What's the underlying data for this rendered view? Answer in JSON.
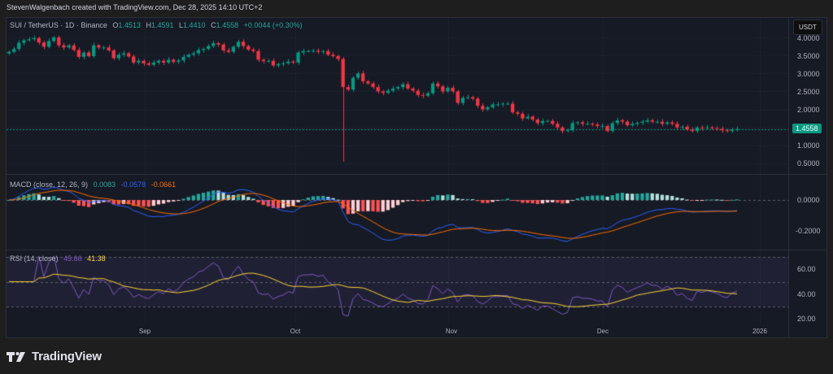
{
  "header": {
    "credit": "StevenWalgenbach created with TradingView.com, Dec 28, 2025 14:10 UTC+2"
  },
  "symbol": {
    "title": "SUI / TetherUS · 1D · Binance",
    "open_label": "O",
    "open": "1.4513",
    "high_label": "H",
    "high": "1.4591",
    "low_label": "L",
    "low": "1.4410",
    "close_label": "C",
    "close": "1.4558",
    "change": "+0.0044 (+0.30%)"
  },
  "price_scale": {
    "currency": "USDT",
    "labels": [
      "4.0000",
      "3.5000",
      "3.0000",
      "2.5000",
      "2.0000",
      "1.0000",
      "0.5000"
    ],
    "last_price": "1.4558"
  },
  "macd": {
    "title": "MACD (close, 12, 26, 9)",
    "histogram": "0.0083",
    "macd": "-0.0578",
    "signal": "-0.0661",
    "labels": [
      "0.0000",
      "-0.2000"
    ]
  },
  "rsi": {
    "title": "RSI (14, close)",
    "rsi": "45.66",
    "ma": "41.38",
    "labels": [
      "60.00",
      "40.00",
      "20.00"
    ]
  },
  "time_axis": {
    "labels": [
      "Sep",
      "Oct",
      "Nov",
      "Dec",
      "2026"
    ]
  },
  "footer": {
    "brand": "TradingView"
  },
  "colors": {
    "up": "#089981",
    "down": "#f23645",
    "macd_line": "#2962ff",
    "signal_line": "#ff6d00",
    "rsi_line": "#7e57c2",
    "rsi_ma": "#fdd835",
    "hist_up_strong": "#26a69a",
    "hist_up_weak": "#b2dfdb",
    "hist_down_strong": "#ff5252",
    "hist_down_weak": "#ffcdd2"
  },
  "chart_data": [
    {
      "type": "candlestick",
      "title": "SUI / TetherUS · 1D · Binance",
      "ylabel": "USDT",
      "ylim": [
        0.3,
        4.3
      ],
      "x_ticks": [
        "Sep",
        "Oct",
        "Nov",
        "Dec",
        "2026"
      ],
      "y_ticks": [
        0.5,
        1.0,
        2.0,
        2.5,
        3.0,
        3.5,
        4.0
      ],
      "last": {
        "open": 1.4513,
        "high": 1.4591,
        "low": 1.441,
        "close": 1.4558,
        "change": 0.0044,
        "change_pct": 0.3
      },
      "closes": [
        3.6,
        3.68,
        3.85,
        3.92,
        3.95,
        3.98,
        3.86,
        3.74,
        3.9,
        4.0,
        3.78,
        3.72,
        3.78,
        3.65,
        3.46,
        3.58,
        3.48,
        3.78,
        3.72,
        3.72,
        3.64,
        3.42,
        3.52,
        3.56,
        3.47,
        3.3,
        3.35,
        3.28,
        3.24,
        3.3,
        3.35,
        3.3,
        3.38,
        3.32,
        3.36,
        3.46,
        3.52,
        3.56,
        3.65,
        3.68,
        3.76,
        3.84,
        3.8,
        3.64,
        3.6,
        3.74,
        3.88,
        3.76,
        3.66,
        3.62,
        3.38,
        3.34,
        3.35,
        3.22,
        3.26,
        3.28,
        3.33,
        3.3,
        3.58,
        3.62,
        3.62,
        3.63,
        3.6,
        3.62,
        3.52,
        3.48,
        3.4,
        2.62,
        2.55,
        2.88,
        3.0,
        2.78,
        2.72,
        2.62,
        2.5,
        2.46,
        2.52,
        2.58,
        2.62,
        2.7,
        2.58,
        2.52,
        2.4,
        2.38,
        2.45,
        2.72,
        2.64,
        2.5,
        2.6,
        2.5,
        2.18,
        2.32,
        2.34,
        2.3,
        2.1,
        2.0,
        2.06,
        2.14,
        2.14,
        2.16,
        2.16,
        1.92,
        1.88,
        1.75,
        1.8,
        1.72,
        1.62,
        1.68,
        1.68,
        1.6,
        1.5,
        1.4,
        1.42,
        1.62,
        1.64,
        1.6,
        1.6,
        1.58,
        1.54,
        1.54,
        1.4,
        1.62,
        1.7,
        1.66,
        1.56,
        1.6,
        1.63,
        1.66,
        1.7,
        1.66,
        1.66,
        1.6,
        1.64,
        1.6,
        1.5,
        1.52,
        1.44,
        1.4,
        1.5,
        1.48,
        1.5,
        1.48,
        1.46,
        1.42,
        1.4,
        1.44,
        1.456
      ],
      "notable": {
        "flash_crash_low": 0.55,
        "flash_crash_month": "Oct"
      }
    },
    {
      "type": "bar+line",
      "title": "MACD (close, 12, 26, 9)",
      "series": [
        {
          "name": "Histogram",
          "last": 0.0083
        },
        {
          "name": "MACD",
          "last": -0.0578
        },
        {
          "name": "Signal",
          "last": -0.0661
        }
      ],
      "y_ticks": [
        0.0,
        -0.2
      ]
    },
    {
      "type": "line",
      "title": "RSI (14, close)",
      "series": [
        {
          "name": "RSI",
          "last": 45.66
        },
        {
          "name": "RSI-based MA",
          "last": 41.38
        }
      ],
      "y_ticks": [
        20,
        40,
        60
      ],
      "bands": [
        30,
        50,
        70
      ]
    }
  ]
}
